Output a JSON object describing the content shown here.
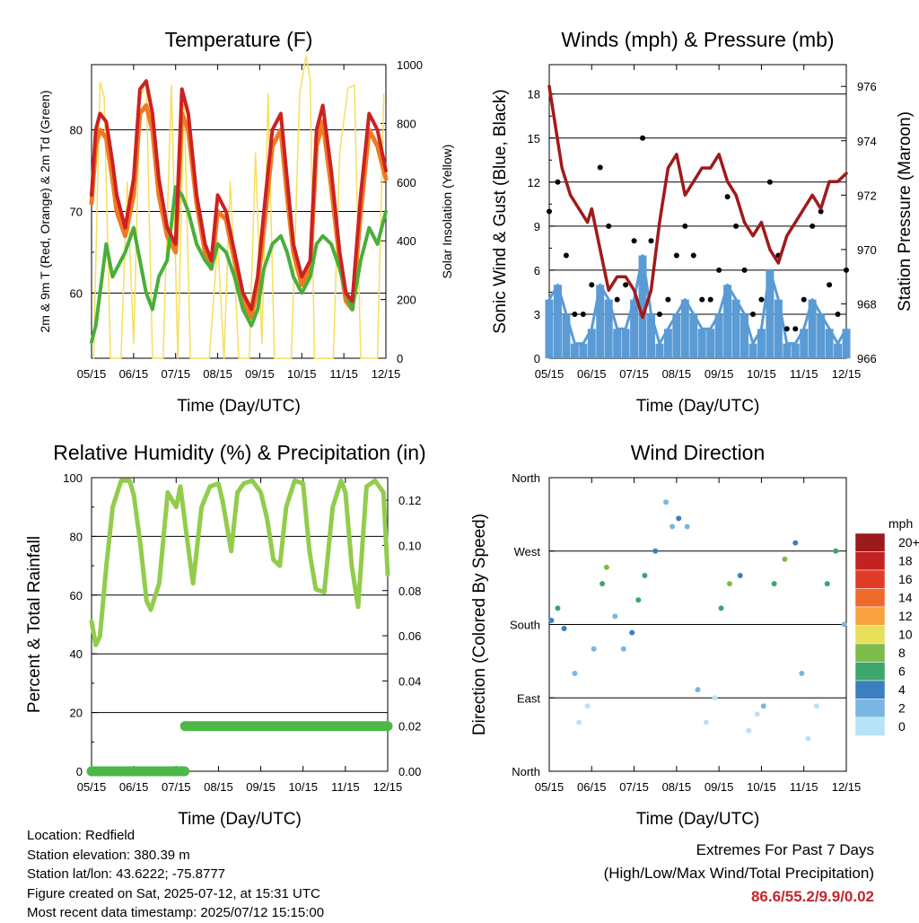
{
  "colors": {
    "temp_red": "#cc2222",
    "temp_orange": "#f07a20",
    "dewpoint_green": "#4aae3a",
    "solar_yellow": "#f5df5a",
    "pressure_maroon": "#a01a1a",
    "wind_blue": "#5b9bd5",
    "gust_black": "#000000",
    "rh_green": "#92cc4c",
    "rain_green": "#4db848",
    "extremes_red": "#c0272d"
  },
  "x_tick_labels": [
    "05/15",
    "06/15",
    "07/15",
    "08/15",
    "09/15",
    "10/15",
    "11/15",
    "12/15"
  ],
  "info": {
    "location": "Location: Redfield",
    "elevation": "Station elevation: 380.39 m",
    "latlon": "Station lat/lon: 43.6222; -75.8777",
    "created": "Figure created on Sat, 2025-07-12, at 15:31 UTC",
    "timestamp": "Most recent data timestamp: 2025/07/12 15:15:00"
  },
  "extremes": {
    "title": "Extremes For Past 7 Days",
    "subtitle": "(High/Low/Max Wind/Total Precipitation)",
    "values": "86.6/55.2/9.9/0.02"
  },
  "chart_data": [
    {
      "id": "temperature",
      "type": "line",
      "title": "Temperature (F)",
      "xlabel": "Time (Day/UTC)",
      "ylabel": "2m & 9m T (Red, Orange) & 2m Td (Green)",
      "y2label": "Solar Insolation (Yellow)",
      "xlim": [
        0,
        7
      ],
      "ylim": [
        52,
        88
      ],
      "y2lim": [
        0,
        1000
      ],
      "yticks": [
        60,
        70,
        80
      ],
      "y2ticks": [
        0,
        200,
        400,
        600,
        800,
        1000
      ],
      "series": [
        {
          "key": "t2m",
          "axis": "y",
          "x": [
            0,
            0.1,
            0.2,
            0.35,
            0.5,
            0.6,
            0.8,
            1.0,
            1.15,
            1.3,
            1.45,
            1.6,
            1.8,
            2.0,
            2.15,
            2.3,
            2.5,
            2.7,
            2.85,
            3.0,
            3.2,
            3.4,
            3.6,
            3.8,
            3.95,
            4.1,
            4.3,
            4.5,
            4.65,
            4.8,
            5.0,
            5.2,
            5.35,
            5.5,
            5.7,
            5.9,
            6.05,
            6.2,
            6.4,
            6.6,
            6.8,
            7.0
          ],
          "values": [
            72,
            80,
            82,
            81,
            76,
            72,
            68,
            74,
            85,
            86,
            82,
            74,
            68,
            66,
            85,
            82,
            72,
            66,
            64,
            72,
            70,
            65,
            60,
            58,
            62,
            70,
            80,
            82,
            74,
            66,
            62,
            64,
            80,
            83,
            75,
            65,
            60,
            59,
            72,
            82,
            80,
            75
          ]
        },
        {
          "key": "t9m",
          "axis": "y",
          "x": [
            0,
            0.1,
            0.2,
            0.35,
            0.5,
            0.6,
            0.8,
            1.0,
            1.15,
            1.3,
            1.45,
            1.6,
            1.8,
            2.0,
            2.15,
            2.3,
            2.5,
            2.7,
            2.85,
            3.0,
            3.2,
            3.4,
            3.6,
            3.8,
            3.95,
            4.1,
            4.3,
            4.5,
            4.65,
            4.8,
            5.0,
            5.2,
            5.35,
            5.5,
            5.7,
            5.9,
            6.05,
            6.2,
            6.4,
            6.6,
            6.8,
            7.0
          ],
          "values": [
            71,
            78,
            80,
            79,
            74,
            70,
            67,
            72,
            82,
            83,
            80,
            72,
            67,
            65,
            82,
            80,
            71,
            65,
            63,
            70,
            69,
            64,
            59,
            57,
            61,
            68,
            78,
            80,
            72,
            65,
            61,
            63,
            78,
            81,
            73,
            64,
            59,
            58,
            70,
            80,
            78,
            74
          ]
        },
        {
          "key": "td2m",
          "axis": "y",
          "x": [
            0,
            0.1,
            0.2,
            0.35,
            0.5,
            0.6,
            0.8,
            1.0,
            1.15,
            1.3,
            1.45,
            1.6,
            1.8,
            2.0,
            2.15,
            2.3,
            2.5,
            2.7,
            2.85,
            3.0,
            3.2,
            3.4,
            3.6,
            3.8,
            3.95,
            4.1,
            4.3,
            4.5,
            4.65,
            4.8,
            5.0,
            5.2,
            5.35,
            5.5,
            5.7,
            5.9,
            6.05,
            6.2,
            6.4,
            6.6,
            6.8,
            7.0
          ],
          "values": [
            54,
            56,
            60,
            66,
            62,
            63,
            65,
            68,
            64,
            60,
            58,
            62,
            64,
            73,
            72,
            70,
            66,
            64,
            63,
            66,
            65,
            62,
            58,
            56,
            58,
            63,
            66,
            67,
            65,
            62,
            60,
            62,
            66,
            67,
            66,
            63,
            60,
            58,
            64,
            68,
            66,
            70
          ]
        },
        {
          "key": "solar",
          "axis": "y2",
          "x": [
            0.05,
            0.2,
            0.3,
            0.45,
            0.7,
            0.85,
            1.0,
            1.15,
            1.3,
            1.45,
            1.7,
            1.9,
            2.05,
            2.2,
            2.35,
            2.6,
            2.8,
            3.0,
            3.15,
            3.3,
            3.5,
            3.75,
            3.9,
            4.05,
            4.2,
            4.35,
            4.5,
            4.75,
            4.95,
            5.1,
            5.2,
            5.3,
            5.45,
            5.75,
            5.9,
            6.1,
            6.25,
            6.4,
            6.6,
            6.8,
            6.95
          ],
          "values": [
            0,
            940,
            890,
            0,
            0,
            600,
            50,
            880,
            950,
            0,
            0,
            930,
            0,
            900,
            0,
            0,
            0,
            400,
            0,
            600,
            0,
            0,
            700,
            50,
            900,
            0,
            0,
            0,
            900,
            1030,
            950,
            0,
            0,
            0,
            700,
            920,
            930,
            0,
            0,
            0,
            900
          ]
        }
      ]
    },
    {
      "id": "winds",
      "type": "scatter",
      "title": "Winds (mph) & Pressure (mb)",
      "xlabel": "Time (Day/UTC)",
      "ylabel": "Sonic Wind & Gust (Blue, Black)",
      "y2label": "Station Pressure (Maroon)",
      "xlim": [
        0,
        7
      ],
      "ylim": [
        0,
        20
      ],
      "y2lim": [
        966,
        976.8
      ],
      "yticks": [
        0,
        3,
        6,
        9,
        12,
        15,
        18
      ],
      "y2ticks": [
        966,
        968,
        970,
        972,
        974,
        976
      ],
      "series": [
        {
          "key": "sonic_wind",
          "axis": "y",
          "x": [
            0,
            0.2,
            0.4,
            0.6,
            0.8,
            1.0,
            1.2,
            1.4,
            1.6,
            1.8,
            2.0,
            2.2,
            2.4,
            2.6,
            2.8,
            3.0,
            3.2,
            3.4,
            3.6,
            3.8,
            4.0,
            4.2,
            4.4,
            4.6,
            4.8,
            5.0,
            5.2,
            5.4,
            5.6,
            5.8,
            6.0,
            6.2,
            6.4,
            6.6,
            6.8,
            7.0
          ],
          "values": [
            4,
            5,
            3,
            1,
            1,
            2,
            5,
            4,
            2,
            2,
            4,
            7,
            3,
            1,
            2,
            3,
            4,
            3,
            2,
            2,
            3,
            5,
            4,
            3,
            1,
            2,
            6,
            4,
            1,
            1,
            2,
            4,
            3,
            2,
            1,
            2
          ]
        },
        {
          "key": "gust",
          "axis": "y",
          "x": [
            0,
            0.2,
            0.4,
            0.6,
            0.8,
            1.0,
            1.2,
            1.4,
            1.6,
            1.8,
            2.0,
            2.2,
            2.4,
            2.6,
            2.8,
            3.0,
            3.2,
            3.4,
            3.6,
            3.8,
            4.0,
            4.2,
            4.4,
            4.6,
            4.8,
            5.0,
            5.2,
            5.4,
            5.6,
            5.8,
            6.0,
            6.2,
            6.4,
            6.6,
            6.8,
            7.0
          ],
          "values": [
            10,
            12,
            7,
            3,
            3,
            5,
            13,
            9,
            4,
            5,
            8,
            15,
            8,
            3,
            4,
            7,
            9,
            7,
            4,
            4,
            6,
            11,
            9,
            6,
            3,
            4,
            12,
            7,
            2,
            2,
            4,
            9,
            10,
            5,
            3,
            6
          ]
        },
        {
          "key": "pressure",
          "axis": "y2",
          "x": [
            0,
            0.1,
            0.3,
            0.5,
            0.7,
            0.9,
            1.0,
            1.2,
            1.4,
            1.6,
            1.8,
            2.0,
            2.2,
            2.4,
            2.6,
            2.8,
            3.0,
            3.2,
            3.4,
            3.6,
            3.8,
            4.0,
            4.2,
            4.4,
            4.6,
            4.8,
            5.0,
            5.2,
            5.4,
            5.6,
            5.8,
            6.0,
            6.2,
            6.4,
            6.6,
            6.8,
            7.0
          ],
          "values": [
            976,
            975,
            973,
            972,
            971.5,
            971,
            971.5,
            970,
            968.5,
            969,
            969,
            968.5,
            967.5,
            968.5,
            971,
            973,
            973.5,
            972,
            972.5,
            973,
            973,
            973.5,
            972.5,
            972,
            971,
            970.5,
            971,
            970,
            969.5,
            970.5,
            971,
            971.5,
            972,
            971.5,
            972.5,
            972.5,
            972.8
          ]
        }
      ]
    },
    {
      "id": "humidity",
      "type": "line",
      "title": "Relative Humidity (%) & Precipitation (in)",
      "xlabel": "Time (Day/UTC)",
      "ylabel": "Percent & Total Rainfall",
      "xlim": [
        0,
        7
      ],
      "ylim": [
        0,
        100
      ],
      "y2lim": [
        0,
        0.13
      ],
      "yticks": [
        0,
        20,
        40,
        60,
        80,
        100
      ],
      "y2ticks": [
        0.0,
        0.02,
        0.04,
        0.06,
        0.08,
        0.1,
        0.12
      ],
      "series": [
        {
          "key": "rh",
          "axis": "y",
          "x": [
            0,
            0.1,
            0.2,
            0.35,
            0.5,
            0.7,
            0.9,
            1.0,
            1.15,
            1.3,
            1.4,
            1.6,
            1.8,
            2.0,
            2.1,
            2.25,
            2.4,
            2.6,
            2.8,
            3.0,
            3.1,
            3.3,
            3.45,
            3.6,
            3.8,
            4.0,
            4.15,
            4.3,
            4.45,
            4.6,
            4.8,
            5.0,
            5.15,
            5.3,
            5.5,
            5.7,
            5.9,
            6.0,
            6.15,
            6.3,
            6.5,
            6.7,
            6.9,
            7.0
          ],
          "values": [
            51,
            43,
            46,
            70,
            90,
            99,
            99,
            94,
            78,
            58,
            55,
            64,
            95,
            90,
            97,
            80,
            64,
            90,
            97,
            98,
            92,
            75,
            95,
            98,
            99,
            95,
            86,
            72,
            70,
            90,
            99,
            98,
            75,
            62,
            61,
            90,
            99,
            95,
            70,
            56,
            97,
            99,
            95,
            67
          ]
        },
        {
          "key": "rain",
          "axis": "y2",
          "x": [
            0,
            0.5,
            1.0,
            1.5,
            2.2,
            2.21,
            3.0,
            4.0,
            5.0,
            6.0,
            7.0
          ],
          "values": [
            0,
            0,
            0,
            0,
            0,
            0.02,
            0.02,
            0.02,
            0.02,
            0.02,
            0.02
          ]
        }
      ]
    },
    {
      "id": "direction",
      "type": "scatter",
      "title": "Wind Direction",
      "xlabel": "Time (Day/UTC)",
      "ylabel": "Direction (Colored By Speed)",
      "xlim": [
        0,
        7
      ],
      "ylim": [
        0,
        360
      ],
      "yticks": [
        0,
        90,
        180,
        270,
        360
      ],
      "ytick_labels": [
        "North",
        "East",
        "South",
        "West",
        "North"
      ],
      "legend_title": "mph",
      "legend_labels": [
        "20+",
        "18",
        "16",
        "14",
        "12",
        "10",
        "8",
        "6",
        "4",
        "2",
        "0"
      ],
      "legend_colors": [
        "#9b1b1b",
        "#c42121",
        "#e03b26",
        "#f06a2c",
        "#f7a23e",
        "#e8df5a",
        "#7dbc4a",
        "#3da66a",
        "#3a80c0",
        "#7ab6e2",
        "#b8e2f7"
      ],
      "series": [
        {
          "key": "dir_speed",
          "x": [
            0.05,
            0.2,
            0.35,
            0.6,
            0.7,
            0.9,
            1.05,
            1.25,
            1.35,
            1.55,
            1.75,
            1.95,
            2.1,
            2.25,
            2.5,
            2.75,
            2.9,
            3.05,
            3.25,
            3.5,
            3.7,
            3.9,
            4.05,
            4.25,
            4.5,
            4.7,
            4.9,
            5.05,
            5.3,
            5.55,
            5.8,
            5.95,
            6.1,
            6.3,
            6.55,
            6.75,
            6.95
          ],
          "values": [
            185,
            200,
            175,
            120,
            60,
            80,
            150,
            230,
            250,
            190,
            150,
            170,
            210,
            240,
            270,
            330,
            300,
            310,
            300,
            100,
            60,
            90,
            200,
            230,
            240,
            50,
            70,
            80,
            230,
            260,
            280,
            120,
            40,
            80,
            230,
            270,
            180
          ],
          "speeds": [
            5,
            6,
            4,
            2,
            1,
            1,
            3,
            7,
            8,
            3,
            3,
            4,
            6,
            7,
            4,
            2,
            3,
            4,
            3,
            2,
            1,
            1,
            6,
            8,
            4,
            1,
            1,
            2,
            6,
            8,
            5,
            2,
            1,
            1,
            6,
            7,
            3
          ]
        }
      ]
    }
  ]
}
